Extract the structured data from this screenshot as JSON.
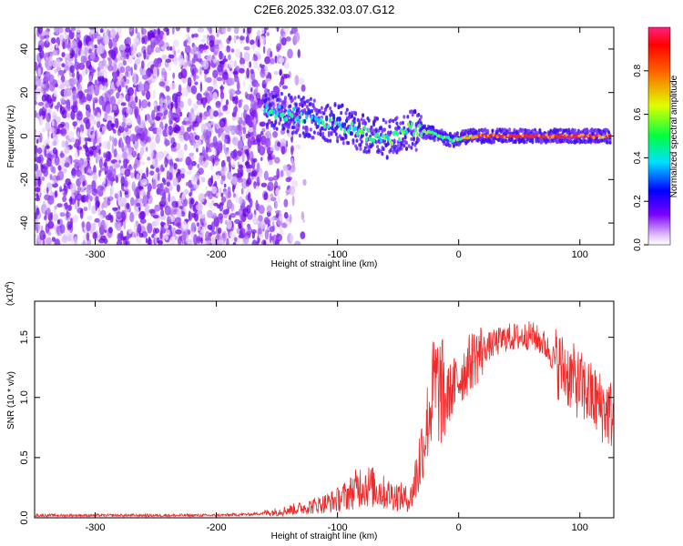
{
  "figure": {
    "title": "C2E6.2025.332.03.07.G12"
  },
  "chart_data": [
    {
      "type": "heatmap",
      "xlabel": "Height of straight line (km)",
      "ylabel": "Frequency (Hz)",
      "xlim": [
        -350,
        128
      ],
      "ylim": [
        -50,
        50
      ],
      "xticks": [
        -300,
        -200,
        -100,
        0,
        100
      ],
      "yticks": [
        -40,
        -20,
        0,
        20,
        40
      ],
      "colorbar": {
        "label": "Normalized spectral amplitude",
        "range": [
          0,
          1
        ],
        "ticks": [
          0.0,
          0.2,
          0.4,
          0.6,
          0.8
        ]
      },
      "colors": {
        "noise": "#6a00e8",
        "signal_mid": "#00e6ff",
        "signal_high": "#e8253a"
      },
      "ridge": [
        {
          "x": -160,
          "y": 12,
          "amp": 0.45
        },
        {
          "x": -140,
          "y": 10,
          "amp": 0.45
        },
        {
          "x": -120,
          "y": 8,
          "amp": 0.4
        },
        {
          "x": -100,
          "y": 6,
          "amp": 0.35
        },
        {
          "x": -80,
          "y": 2,
          "amp": 0.45
        },
        {
          "x": -60,
          "y": -2,
          "amp": 0.5
        },
        {
          "x": -40,
          "y": 3,
          "amp": 0.5
        },
        {
          "x": -20,
          "y": 1,
          "amp": 0.55
        },
        {
          "x": -5,
          "y": -2,
          "amp": 0.45
        },
        {
          "x": 10,
          "y": 0,
          "amp": 0.75
        },
        {
          "x": 30,
          "y": 0,
          "amp": 0.95
        },
        {
          "x": 60,
          "y": 0,
          "amp": 0.9
        },
        {
          "x": 90,
          "y": 0,
          "amp": 0.85
        },
        {
          "x": 125,
          "y": 0,
          "amp": 0.8
        }
      ]
    },
    {
      "type": "line",
      "xlabel": "Height of straight line (km)",
      "ylabel": "SNR (10 * v/v)",
      "yscale_label": "(x10",
      "yscale_exp": "4",
      "yscale_close": ")",
      "xlim": [
        -350,
        128
      ],
      "ylim": [
        0,
        1.8
      ],
      "xticks": [
        -300,
        -200,
        -100,
        0,
        100
      ],
      "yticks": [
        0.0,
        0.5,
        1.0,
        1.5
      ],
      "color": "#ee2b2b",
      "series": [
        {
          "x": [
            -350,
            -300,
            -250,
            -200,
            -170,
            -150,
            -130,
            -110,
            -100,
            -90,
            -80,
            -70,
            -60,
            -50,
            -40,
            -30,
            -25,
            -20,
            -15,
            -10,
            0,
            10,
            20,
            30,
            40,
            50,
            60,
            70,
            80,
            90,
            100,
            110,
            120,
            128
          ],
          "y": [
            0.02,
            0.02,
            0.02,
            0.02,
            0.03,
            0.05,
            0.08,
            0.12,
            0.15,
            0.2,
            0.28,
            0.25,
            0.2,
            0.18,
            0.15,
            0.55,
            0.85,
            1.1,
            1.05,
            1.0,
            1.15,
            1.3,
            1.4,
            1.45,
            1.5,
            1.5,
            1.52,
            1.45,
            1.3,
            1.2,
            1.1,
            1.0,
            0.9,
            0.85
          ]
        }
      ]
    }
  ]
}
